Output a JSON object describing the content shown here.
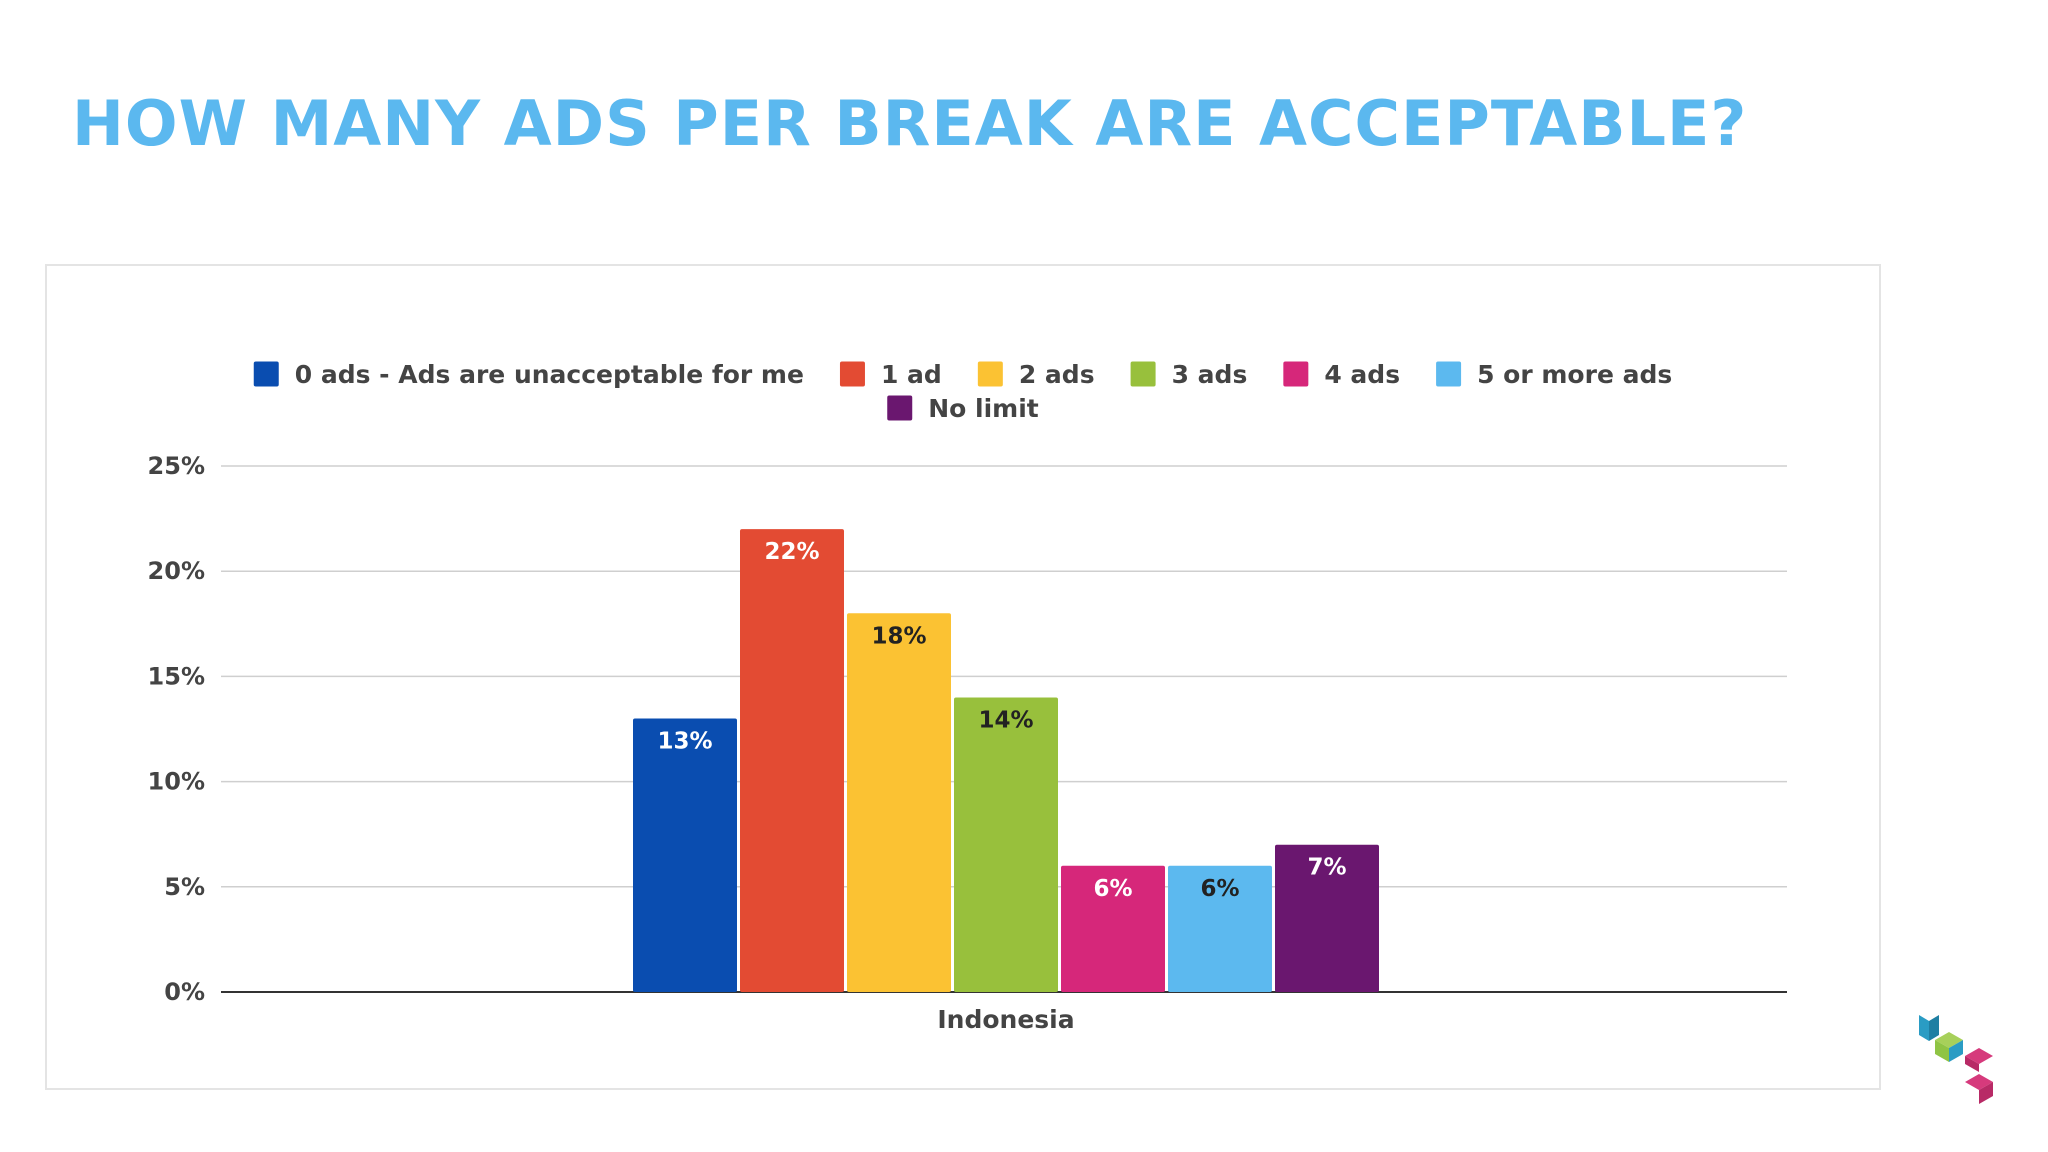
{
  "slide": {
    "title": "HOW MANY ADS PER BREAK ARE ACCEPTABLE?"
  },
  "logo": {
    "icon": "cube-stack-logo-icon",
    "colors": [
      "#2a9cc4",
      "#8fc444",
      "#d63a7c"
    ]
  },
  "chart_data": {
    "type": "bar",
    "title": "",
    "xlabel": "",
    "ylabel": "",
    "categories": [
      "Indonesia"
    ],
    "ylim": [
      0,
      25
    ],
    "yticks": [
      "0%",
      "5%",
      "10%",
      "15%",
      "20%",
      "25%"
    ],
    "grid": true,
    "legend_position": "top",
    "series": [
      {
        "name": "0 ads - Ads are unacceptable for me",
        "values": [
          13
        ],
        "label": "13%",
        "color": "#0a4db0"
      },
      {
        "name": "1 ad",
        "values": [
          22
        ],
        "label": "22%",
        "color": "#e34b33"
      },
      {
        "name": "2 ads",
        "values": [
          18
        ],
        "label": "18%",
        "color": "#fbc233"
      },
      {
        "name": "3 ads",
        "values": [
          14
        ],
        "label": "14%",
        "color": "#98c03c"
      },
      {
        "name": "4 ads",
        "values": [
          6
        ],
        "label": "6%",
        "color": "#d6277a"
      },
      {
        "name": "5 or more ads",
        "values": [
          6
        ],
        "label": "6%",
        "color": "#5cb9ef"
      },
      {
        "name": "No limit",
        "values": [
          7
        ],
        "label": "7%",
        "color": "#6a176f"
      }
    ]
  }
}
